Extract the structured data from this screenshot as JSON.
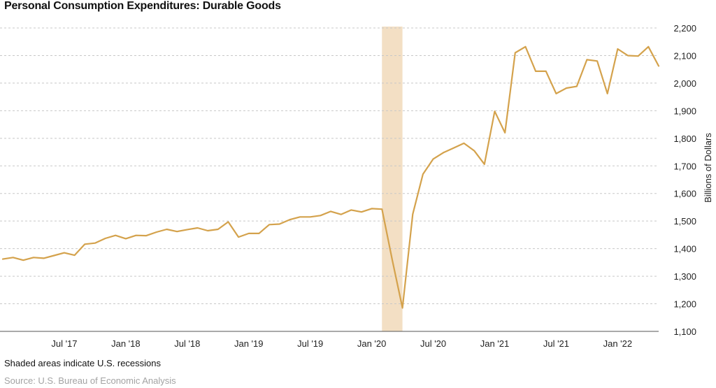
{
  "chart_data": {
    "type": "line",
    "title": "Personal Consumption Expenditures: Durable Goods",
    "ylabel": "Billions of Dollars",
    "xlabel": "",
    "ylim": [
      1100,
      2200
    ],
    "yticks": [
      1100,
      1200,
      1300,
      1400,
      1500,
      1600,
      1700,
      1800,
      1900,
      2000,
      2100,
      2200
    ],
    "ytick_labels": [
      "1,100",
      "1,200",
      "1,300",
      "1,400",
      "1,500",
      "1,600",
      "1,700",
      "1,800",
      "1,900",
      "2,000",
      "2,100",
      "2,200"
    ],
    "x_start": "Jan 2017",
    "x_end": "May 2022",
    "xticks": [
      {
        "date": "Jul 2017",
        "label": "Jul '17"
      },
      {
        "date": "Jan 2018",
        "label": "Jan '18"
      },
      {
        "date": "Jul 2018",
        "label": "Jul '18"
      },
      {
        "date": "Jan 2019",
        "label": "Jan '19"
      },
      {
        "date": "Jul 2019",
        "label": "Jul '19"
      },
      {
        "date": "Jan 2020",
        "label": "Jan '20"
      },
      {
        "date": "Jul 2020",
        "label": "Jul '20"
      },
      {
        "date": "Jan 2021",
        "label": "Jan '21"
      },
      {
        "date": "Jul 2021",
        "label": "Jul '21"
      },
      {
        "date": "Jan 2022",
        "label": "Jan '22"
      }
    ],
    "grid": true,
    "grid_style": "dashed-horizontal",
    "recession": {
      "start": "Feb 2020",
      "end": "Apr 2020"
    },
    "series": [
      {
        "color": "#d4a24c",
        "x": [
          "Jan 2017",
          "Feb 2017",
          "Mar 2017",
          "Apr 2017",
          "May 2017",
          "Jun 2017",
          "Jul 2017",
          "Aug 2017",
          "Sep 2017",
          "Oct 2017",
          "Nov 2017",
          "Dec 2017",
          "Jan 2018",
          "Feb 2018",
          "Mar 2018",
          "Apr 2018",
          "May 2018",
          "Jun 2018",
          "Jul 2018",
          "Aug 2018",
          "Sep 2018",
          "Oct 2018",
          "Nov 2018",
          "Dec 2018",
          "Jan 2019",
          "Feb 2019",
          "Mar 2019",
          "Apr 2019",
          "May 2019",
          "Jun 2019",
          "Jul 2019",
          "Aug 2019",
          "Sep 2019",
          "Oct 2019",
          "Nov 2019",
          "Dec 2019",
          "Jan 2020",
          "Feb 2020",
          "Mar 2020",
          "Apr 2020",
          "May 2020",
          "Jun 2020",
          "Jul 2020",
          "Aug 2020",
          "Sep 2020",
          "Oct 2020",
          "Nov 2020",
          "Dec 2020",
          "Jan 2021",
          "Feb 2021",
          "Mar 2021",
          "Apr 2021",
          "May 2021",
          "Jun 2021",
          "Jul 2021",
          "Aug 2021",
          "Sep 2021",
          "Oct 2021",
          "Nov 2021",
          "Dec 2021",
          "Jan 2022",
          "Feb 2022",
          "Mar 2022",
          "Apr 2022",
          "May 2022"
        ],
        "values": [
          1362,
          1368,
          1358,
          1368,
          1365,
          1375,
          1385,
          1376,
          1416,
          1420,
          1437,
          1448,
          1436,
          1448,
          1447,
          1460,
          1470,
          1462,
          1469,
          1475,
          1465,
          1470,
          1497,
          1442,
          1455,
          1455,
          1487,
          1489,
          1505,
          1515,
          1515,
          1520,
          1535,
          1524,
          1540,
          1533,
          1545,
          1543,
          1360,
          1185,
          1525,
          1670,
          1725,
          1748,
          1765,
          1782,
          1755,
          1706,
          1898,
          1820,
          2110,
          2132,
          2043,
          2043,
          1962,
          1982,
          1988,
          2085,
          2080,
          1962,
          2124,
          2100,
          2098,
          2132,
          2062
        ]
      }
    ]
  },
  "footer": {
    "note": "Shaded areas indicate U.S. recessions",
    "source": "Source: U.S. Bureau of Economic Analysis"
  }
}
